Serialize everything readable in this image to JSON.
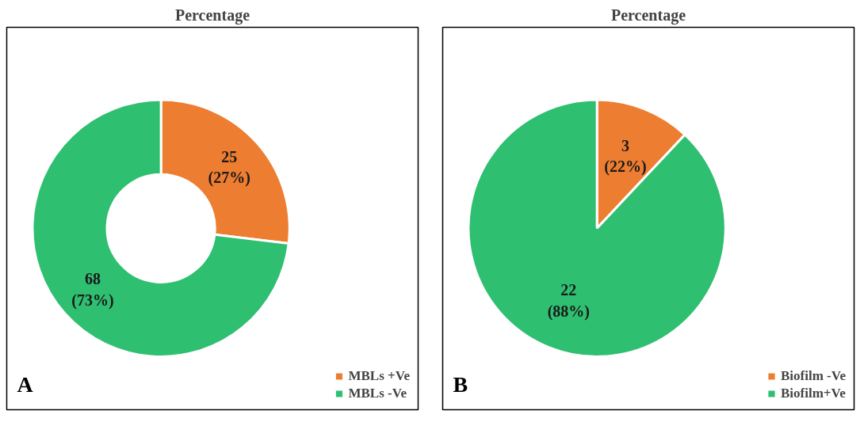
{
  "chart_data": [
    {
      "type": "donut",
      "title": "Percentage",
      "categories": [
        "MBLs +Ve",
        "MBLs -Ve"
      ],
      "values": [
        25,
        68
      ],
      "colors": [
        "#ed7d31",
        "#2fbf71"
      ],
      "value_labels": [
        "25\n(27%)",
        "68\n(73%)"
      ],
      "legend": "bottom right",
      "annotations": [
        "A"
      ]
    },
    {
      "type": "pie",
      "title": "Percentage",
      "categories": [
        "Biofilm -Ve",
        "Biofilm+Ve"
      ],
      "values": [
        3,
        22
      ],
      "colors": [
        "#ed7d31",
        "#2fbf71"
      ],
      "value_labels": [
        "3\n(22%)",
        "22\n(88%)"
      ],
      "legend": "bottom right",
      "annotations": [
        "B"
      ]
    }
  ]
}
